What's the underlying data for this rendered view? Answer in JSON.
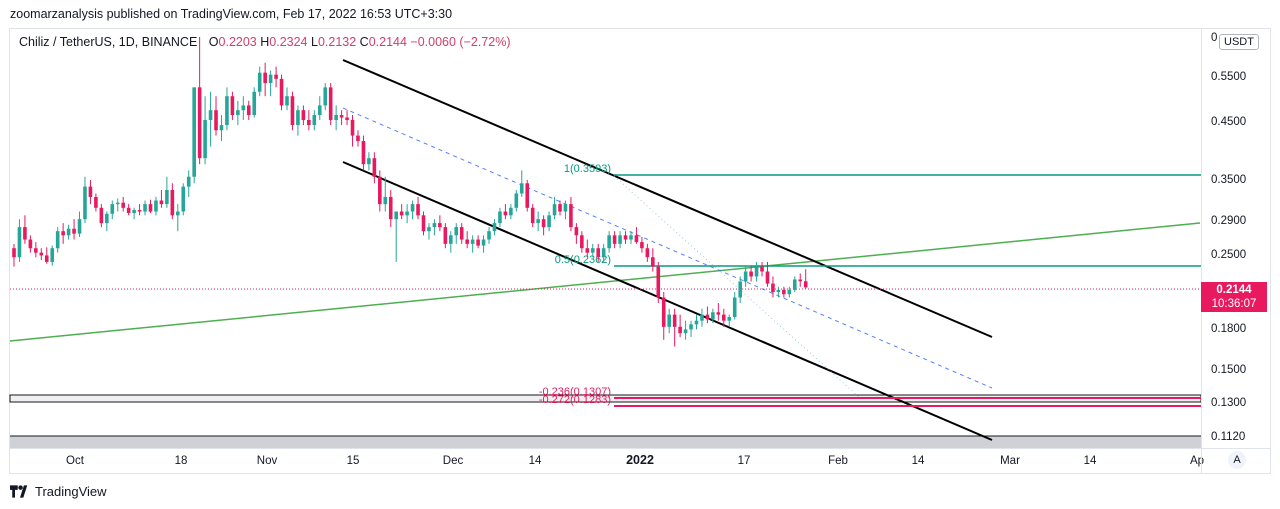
{
  "header": {
    "publisher_line": "zoomarzanalysis published on TradingView.com, Feb 17, 2022 16:53 UTC+3:30"
  },
  "legend": {
    "symbol": "Chiliz / TetherUS, 1D, BINANCE",
    "open_label": "O",
    "open": "0.2203",
    "high_label": "H",
    "high": "0.2324",
    "low_label": "L",
    "low": "0.2132",
    "close_label": "C",
    "close": "0.2144",
    "change": "−0.0060 (−2.72%)"
  },
  "price_axis": {
    "currency_button": "USDT",
    "top_label": "0",
    "last_price": "0.2144",
    "countdown": "10:36:07"
  },
  "footer": {
    "brand": "TradingView"
  },
  "time_axis": {
    "auto_button": "A"
  },
  "colors": {
    "up": "#26a69a",
    "down": "#e8195e",
    "fib": "#089981",
    "trend_green": "#4caf50",
    "channel": "#000000",
    "mid_dash": "#2962ff",
    "ext": "#e8195e"
  },
  "chart_data": {
    "type": "candlestick",
    "scale": "log",
    "y_ticks": [
      "0.5500",
      "0.4500",
      "0.3500",
      "0.2900",
      "0.2500",
      "0.1800",
      "0.1500",
      "0.1300",
      "0.1120"
    ],
    "x_ticks": [
      "Oct",
      "18",
      "Nov",
      "15",
      "Dec",
      "14",
      "2022",
      "17",
      "Feb",
      "14",
      "Mar",
      "14",
      "Ap"
    ],
    "last_price": 0.2144,
    "fib_levels": [
      {
        "label": "1(0.3593)",
        "value": 0.3593,
        "color": "#089981"
      },
      {
        "label": "0.5(0.2362)",
        "value": 0.2362,
        "color": "#089981"
      },
      {
        "label": "-0.236(0.1307)",
        "value": 0.1307,
        "color": "#e8195e"
      },
      {
        "label": "-0.272(0.1283)",
        "value": 0.1283,
        "color": "#e8195e"
      }
    ],
    "candles": [
      {
        "d": "Sep 25",
        "o": 0.255,
        "h": 0.26,
        "l": 0.235,
        "c": 0.245
      },
      {
        "d": "Sep 26",
        "o": 0.245,
        "h": 0.29,
        "l": 0.24,
        "c": 0.28
      },
      {
        "d": "Sep 27",
        "o": 0.28,
        "h": 0.295,
        "l": 0.26,
        "c": 0.265
      },
      {
        "d": "Sep 28",
        "o": 0.265,
        "h": 0.27,
        "l": 0.25,
        "c": 0.255
      },
      {
        "d": "Sep 29",
        "o": 0.255,
        "h": 0.262,
        "l": 0.245,
        "c": 0.25
      },
      {
        "d": "Sep 30",
        "o": 0.25,
        "h": 0.255,
        "l": 0.242,
        "c": 0.247
      },
      {
        "d": "Oct 1",
        "o": 0.247,
        "h": 0.256,
        "l": 0.238,
        "c": 0.24
      },
      {
        "d": "Oct 2",
        "o": 0.24,
        "h": 0.258,
        "l": 0.236,
        "c": 0.255
      },
      {
        "d": "Oct 3",
        "o": 0.255,
        "h": 0.28,
        "l": 0.25,
        "c": 0.275
      },
      {
        "d": "Oct 4",
        "o": 0.275,
        "h": 0.285,
        "l": 0.26,
        "c": 0.27
      },
      {
        "d": "Oct 5",
        "o": 0.27,
        "h": 0.283,
        "l": 0.265,
        "c": 0.278
      },
      {
        "d": "Oct 6",
        "o": 0.278,
        "h": 0.29,
        "l": 0.265,
        "c": 0.272
      },
      {
        "d": "Oct 7",
        "o": 0.272,
        "h": 0.3,
        "l": 0.268,
        "c": 0.29
      },
      {
        "d": "Oct 8",
        "o": 0.29,
        "h": 0.35,
        "l": 0.285,
        "c": 0.335
      },
      {
        "d": "Oct 9",
        "o": 0.335,
        "h": 0.345,
        "l": 0.31,
        "c": 0.32
      },
      {
        "d": "Oct 10",
        "o": 0.32,
        "h": 0.325,
        "l": 0.3,
        "c": 0.305
      },
      {
        "d": "Oct 11",
        "o": 0.305,
        "h": 0.31,
        "l": 0.28,
        "c": 0.285
      },
      {
        "d": "Oct 12",
        "o": 0.285,
        "h": 0.3,
        "l": 0.275,
        "c": 0.297
      },
      {
        "d": "Oct 13",
        "o": 0.297,
        "h": 0.315,
        "l": 0.29,
        "c": 0.31
      },
      {
        "d": "Oct 14",
        "o": 0.31,
        "h": 0.318,
        "l": 0.3,
        "c": 0.312
      },
      {
        "d": "Oct 15",
        "o": 0.312,
        "h": 0.32,
        "l": 0.3,
        "c": 0.305
      },
      {
        "d": "Oct 16",
        "o": 0.305,
        "h": 0.31,
        "l": 0.295,
        "c": 0.298
      },
      {
        "d": "Oct 17",
        "o": 0.298,
        "h": 0.305,
        "l": 0.29,
        "c": 0.302
      },
      {
        "d": "Oct 18",
        "o": 0.302,
        "h": 0.31,
        "l": 0.295,
        "c": 0.3
      },
      {
        "d": "Oct 19",
        "o": 0.3,
        "h": 0.315,
        "l": 0.295,
        "c": 0.31
      },
      {
        "d": "Oct 20",
        "o": 0.31,
        "h": 0.316,
        "l": 0.298,
        "c": 0.3
      },
      {
        "d": "Oct 21",
        "o": 0.3,
        "h": 0.32,
        "l": 0.295,
        "c": 0.315
      },
      {
        "d": "Oct 22",
        "o": 0.315,
        "h": 0.33,
        "l": 0.305,
        "c": 0.31
      },
      {
        "d": "Oct 23",
        "o": 0.31,
        "h": 0.35,
        "l": 0.305,
        "c": 0.33
      },
      {
        "d": "Oct 24",
        "o": 0.33,
        "h": 0.34,
        "l": 0.29,
        "c": 0.295
      },
      {
        "d": "Oct 25",
        "o": 0.295,
        "h": 0.31,
        "l": 0.275,
        "c": 0.3
      },
      {
        "d": "Oct 26",
        "o": 0.3,
        "h": 0.34,
        "l": 0.295,
        "c": 0.335
      },
      {
        "d": "Oct 27",
        "o": 0.335,
        "h": 0.36,
        "l": 0.32,
        "c": 0.35
      },
      {
        "d": "Oct 28",
        "o": 0.35,
        "h": 0.52,
        "l": 0.34,
        "c": 0.52
      },
      {
        "d": "Oct 29",
        "o": 0.52,
        "h": 0.65,
        "l": 0.37,
        "c": 0.38
      },
      {
        "d": "Oct 30",
        "o": 0.38,
        "h": 0.5,
        "l": 0.37,
        "c": 0.45
      },
      {
        "d": "Oct 31",
        "o": 0.45,
        "h": 0.51,
        "l": 0.4,
        "c": 0.47
      },
      {
        "d": "Nov 1",
        "o": 0.47,
        "h": 0.5,
        "l": 0.42,
        "c": 0.43
      },
      {
        "d": "Nov 2",
        "o": 0.43,
        "h": 0.46,
        "l": 0.41,
        "c": 0.44
      },
      {
        "d": "Nov 3",
        "o": 0.44,
        "h": 0.52,
        "l": 0.43,
        "c": 0.5
      },
      {
        "d": "Nov 4",
        "o": 0.5,
        "h": 0.51,
        "l": 0.45,
        "c": 0.46
      },
      {
        "d": "Nov 5",
        "o": 0.46,
        "h": 0.49,
        "l": 0.44,
        "c": 0.47
      },
      {
        "d": "Nov 6",
        "o": 0.47,
        "h": 0.5,
        "l": 0.45,
        "c": 0.48
      },
      {
        "d": "Nov 7",
        "o": 0.48,
        "h": 0.49,
        "l": 0.45,
        "c": 0.46
      },
      {
        "d": "Nov 8",
        "o": 0.46,
        "h": 0.52,
        "l": 0.455,
        "c": 0.51
      },
      {
        "d": "Nov 9",
        "o": 0.51,
        "h": 0.57,
        "l": 0.5,
        "c": 0.555
      },
      {
        "d": "Nov 10",
        "o": 0.555,
        "h": 0.58,
        "l": 0.5,
        "c": 0.53
      },
      {
        "d": "Nov 11",
        "o": 0.53,
        "h": 0.56,
        "l": 0.5,
        "c": 0.55
      },
      {
        "d": "Nov 12",
        "o": 0.55,
        "h": 0.57,
        "l": 0.52,
        "c": 0.54
      },
      {
        "d": "Nov 13",
        "o": 0.54,
        "h": 0.55,
        "l": 0.47,
        "c": 0.48
      },
      {
        "d": "Nov 14",
        "o": 0.48,
        "h": 0.52,
        "l": 0.47,
        "c": 0.5
      },
      {
        "d": "Nov 15",
        "o": 0.5,
        "h": 0.51,
        "l": 0.43,
        "c": 0.44
      },
      {
        "d": "Nov 16",
        "o": 0.44,
        "h": 0.48,
        "l": 0.42,
        "c": 0.47
      },
      {
        "d": "Nov 17",
        "o": 0.47,
        "h": 0.48,
        "l": 0.44,
        "c": 0.45
      },
      {
        "d": "Nov 18",
        "o": 0.45,
        "h": 0.47,
        "l": 0.43,
        "c": 0.44
      },
      {
        "d": "Nov 19",
        "o": 0.44,
        "h": 0.47,
        "l": 0.43,
        "c": 0.46
      },
      {
        "d": "Nov 20",
        "o": 0.46,
        "h": 0.5,
        "l": 0.45,
        "c": 0.48
      },
      {
        "d": "Nov 21",
        "o": 0.48,
        "h": 0.53,
        "l": 0.47,
        "c": 0.52
      },
      {
        "d": "Nov 22",
        "o": 0.52,
        "h": 0.53,
        "l": 0.44,
        "c": 0.45
      },
      {
        "d": "Nov 23",
        "o": 0.45,
        "h": 0.48,
        "l": 0.43,
        "c": 0.46
      },
      {
        "d": "Nov 24",
        "o": 0.46,
        "h": 0.47,
        "l": 0.44,
        "c": 0.455
      },
      {
        "d": "Nov 25",
        "o": 0.455,
        "h": 0.47,
        "l": 0.44,
        "c": 0.45
      },
      {
        "d": "Nov 26",
        "o": 0.45,
        "h": 0.46,
        "l": 0.4,
        "c": 0.42
      },
      {
        "d": "Nov 27",
        "o": 0.42,
        "h": 0.43,
        "l": 0.4,
        "c": 0.41
      },
      {
        "d": "Nov 28",
        "o": 0.41,
        "h": 0.42,
        "l": 0.36,
        "c": 0.37
      },
      {
        "d": "Nov 29",
        "o": 0.37,
        "h": 0.39,
        "l": 0.36,
        "c": 0.38
      },
      {
        "d": "Nov 30",
        "o": 0.38,
        "h": 0.39,
        "l": 0.34,
        "c": 0.35
      },
      {
        "d": "Dec 1",
        "o": 0.35,
        "h": 0.36,
        "l": 0.3,
        "c": 0.31
      },
      {
        "d": "Dec 2",
        "o": 0.31,
        "h": 0.35,
        "l": 0.3,
        "c": 0.32
      },
      {
        "d": "Dec 3",
        "o": 0.32,
        "h": 0.33,
        "l": 0.28,
        "c": 0.29
      },
      {
        "d": "Dec 4",
        "o": 0.29,
        "h": 0.3,
        "l": 0.24,
        "c": 0.3
      },
      {
        "d": "Dec 5",
        "o": 0.3,
        "h": 0.31,
        "l": 0.29,
        "c": 0.295
      },
      {
        "d": "Dec 6",
        "o": 0.295,
        "h": 0.31,
        "l": 0.285,
        "c": 0.3
      },
      {
        "d": "Dec 7",
        "o": 0.3,
        "h": 0.315,
        "l": 0.29,
        "c": 0.31
      },
      {
        "d": "Dec 8",
        "o": 0.31,
        "h": 0.32,
        "l": 0.29,
        "c": 0.295
      },
      {
        "d": "Dec 9",
        "o": 0.295,
        "h": 0.3,
        "l": 0.27,
        "c": 0.275
      },
      {
        "d": "Dec 10",
        "o": 0.275,
        "h": 0.285,
        "l": 0.265,
        "c": 0.28
      },
      {
        "d": "Dec 11",
        "o": 0.28,
        "h": 0.29,
        "l": 0.27,
        "c": 0.285
      },
      {
        "d": "Dec 12",
        "o": 0.285,
        "h": 0.295,
        "l": 0.275,
        "c": 0.28
      },
      {
        "d": "Dec 13",
        "o": 0.28,
        "h": 0.285,
        "l": 0.255,
        "c": 0.26
      },
      {
        "d": "Dec 14",
        "o": 0.26,
        "h": 0.275,
        "l": 0.25,
        "c": 0.27
      },
      {
        "d": "Dec 15",
        "o": 0.27,
        "h": 0.285,
        "l": 0.26,
        "c": 0.28
      },
      {
        "d": "Dec 16",
        "o": 0.28,
        "h": 0.285,
        "l": 0.26,
        "c": 0.265
      },
      {
        "d": "Dec 17",
        "o": 0.265,
        "h": 0.275,
        "l": 0.255,
        "c": 0.26
      },
      {
        "d": "Dec 18",
        "o": 0.26,
        "h": 0.27,
        "l": 0.25,
        "c": 0.265
      },
      {
        "d": "Dec 19",
        "o": 0.265,
        "h": 0.27,
        "l": 0.255,
        "c": 0.258
      },
      {
        "d": "Dec 20",
        "o": 0.258,
        "h": 0.27,
        "l": 0.25,
        "c": 0.265
      },
      {
        "d": "Dec 21",
        "o": 0.265,
        "h": 0.28,
        "l": 0.26,
        "c": 0.275
      },
      {
        "d": "Dec 22",
        "o": 0.275,
        "h": 0.29,
        "l": 0.27,
        "c": 0.285
      },
      {
        "d": "Dec 23",
        "o": 0.285,
        "h": 0.305,
        "l": 0.28,
        "c": 0.3
      },
      {
        "d": "Dec 24",
        "o": 0.3,
        "h": 0.31,
        "l": 0.29,
        "c": 0.295
      },
      {
        "d": "Dec 25",
        "o": 0.295,
        "h": 0.31,
        "l": 0.29,
        "c": 0.305
      },
      {
        "d": "Dec 26",
        "o": 0.305,
        "h": 0.33,
        "l": 0.3,
        "c": 0.325
      },
      {
        "d": "Dec 27",
        "o": 0.325,
        "h": 0.36,
        "l": 0.32,
        "c": 0.34
      },
      {
        "d": "Dec 28",
        "o": 0.34,
        "h": 0.345,
        "l": 0.3,
        "c": 0.305
      },
      {
        "d": "Dec 29",
        "o": 0.305,
        "h": 0.31,
        "l": 0.28,
        "c": 0.285
      },
      {
        "d": "Dec 30",
        "o": 0.285,
        "h": 0.3,
        "l": 0.275,
        "c": 0.29
      },
      {
        "d": "Dec 31",
        "o": 0.29,
        "h": 0.295,
        "l": 0.27,
        "c": 0.28
      },
      {
        "d": "Jan 1",
        "o": 0.28,
        "h": 0.3,
        "l": 0.275,
        "c": 0.295
      },
      {
        "d": "Jan 2",
        "o": 0.295,
        "h": 0.32,
        "l": 0.29,
        "c": 0.31
      },
      {
        "d": "Jan 3",
        "o": 0.31,
        "h": 0.315,
        "l": 0.295,
        "c": 0.3
      },
      {
        "d": "Jan 4",
        "o": 0.3,
        "h": 0.315,
        "l": 0.29,
        "c": 0.31
      },
      {
        "d": "Jan 5",
        "o": 0.31,
        "h": 0.32,
        "l": 0.275,
        "c": 0.28
      },
      {
        "d": "Jan 6",
        "o": 0.28,
        "h": 0.285,
        "l": 0.26,
        "c": 0.27
      },
      {
        "d": "Jan 7",
        "o": 0.27,
        "h": 0.275,
        "l": 0.25,
        "c": 0.255
      },
      {
        "d": "Jan 8",
        "o": 0.255,
        "h": 0.265,
        "l": 0.245,
        "c": 0.25
      },
      {
        "d": "Jan 9",
        "o": 0.25,
        "h": 0.26,
        "l": 0.245,
        "c": 0.255
      },
      {
        "d": "Jan 10",
        "o": 0.255,
        "h": 0.26,
        "l": 0.24,
        "c": 0.245
      },
      {
        "d": "Jan 11",
        "o": 0.245,
        "h": 0.26,
        "l": 0.24,
        "c": 0.255
      },
      {
        "d": "Jan 12",
        "o": 0.255,
        "h": 0.275,
        "l": 0.25,
        "c": 0.27
      },
      {
        "d": "Jan 13",
        "o": 0.27,
        "h": 0.275,
        "l": 0.255,
        "c": 0.26
      },
      {
        "d": "Jan 14",
        "o": 0.26,
        "h": 0.275,
        "l": 0.255,
        "c": 0.27
      },
      {
        "d": "Jan 15",
        "o": 0.27,
        "h": 0.275,
        "l": 0.26,
        "c": 0.265
      },
      {
        "d": "Jan 16",
        "o": 0.265,
        "h": 0.275,
        "l": 0.26,
        "c": 0.27
      },
      {
        "d": "Jan 17",
        "o": 0.27,
        "h": 0.28,
        "l": 0.26,
        "c": 0.262
      },
      {
        "d": "Jan 18",
        "o": 0.262,
        "h": 0.268,
        "l": 0.25,
        "c": 0.255
      },
      {
        "d": "Jan 19",
        "o": 0.255,
        "h": 0.26,
        "l": 0.24,
        "c": 0.245
      },
      {
        "d": "Jan 20",
        "o": 0.245,
        "h": 0.255,
        "l": 0.23,
        "c": 0.235
      },
      {
        "d": "Jan 21",
        "o": 0.235,
        "h": 0.24,
        "l": 0.2,
        "c": 0.205
      },
      {
        "d": "Jan 22",
        "o": 0.205,
        "h": 0.21,
        "l": 0.17,
        "c": 0.18
      },
      {
        "d": "Jan 23",
        "o": 0.18,
        "h": 0.195,
        "l": 0.175,
        "c": 0.19
      },
      {
        "d": "Jan 24",
        "o": 0.19,
        "h": 0.195,
        "l": 0.165,
        "c": 0.18
      },
      {
        "d": "Jan 25",
        "o": 0.18,
        "h": 0.19,
        "l": 0.172,
        "c": 0.175
      },
      {
        "d": "Jan 26",
        "o": 0.175,
        "h": 0.185,
        "l": 0.17,
        "c": 0.178
      },
      {
        "d": "Jan 27",
        "o": 0.178,
        "h": 0.185,
        "l": 0.172,
        "c": 0.182
      },
      {
        "d": "Jan 28",
        "o": 0.182,
        "h": 0.19,
        "l": 0.178,
        "c": 0.185
      },
      {
        "d": "Jan 29",
        "o": 0.185,
        "h": 0.195,
        "l": 0.18,
        "c": 0.19
      },
      {
        "d": "Jan 30",
        "o": 0.19,
        "h": 0.197,
        "l": 0.183,
        "c": 0.186
      },
      {
        "d": "Jan 31",
        "o": 0.186,
        "h": 0.195,
        "l": 0.183,
        "c": 0.192
      },
      {
        "d": "Feb 1",
        "o": 0.192,
        "h": 0.2,
        "l": 0.185,
        "c": 0.19
      },
      {
        "d": "Feb 2",
        "o": 0.19,
        "h": 0.195,
        "l": 0.18,
        "c": 0.185
      },
      {
        "d": "Feb 3",
        "o": 0.185,
        "h": 0.19,
        "l": 0.18,
        "c": 0.188
      },
      {
        "d": "Feb 4",
        "o": 0.188,
        "h": 0.21,
        "l": 0.186,
        "c": 0.205
      },
      {
        "d": "Feb 5",
        "o": 0.205,
        "h": 0.225,
        "l": 0.2,
        "c": 0.22
      },
      {
        "d": "Feb 6",
        "o": 0.22,
        "h": 0.235,
        "l": 0.215,
        "c": 0.23
      },
      {
        "d": "Feb 7",
        "o": 0.23,
        "h": 0.235,
        "l": 0.22,
        "c": 0.225
      },
      {
        "d": "Feb 8",
        "o": 0.225,
        "h": 0.24,
        "l": 0.22,
        "c": 0.235
      },
      {
        "d": "Feb 9",
        "o": 0.235,
        "h": 0.24,
        "l": 0.225,
        "c": 0.23
      },
      {
        "d": "Feb 10",
        "o": 0.23,
        "h": 0.24,
        "l": 0.215,
        "c": 0.218
      },
      {
        "d": "Feb 11",
        "o": 0.218,
        "h": 0.225,
        "l": 0.205,
        "c": 0.21
      },
      {
        "d": "Feb 12",
        "o": 0.21,
        "h": 0.215,
        "l": 0.205,
        "c": 0.212
      },
      {
        "d": "Feb 13",
        "o": 0.212,
        "h": 0.215,
        "l": 0.205,
        "c": 0.208
      },
      {
        "d": "Feb 14",
        "o": 0.208,
        "h": 0.215,
        "l": 0.205,
        "c": 0.212
      },
      {
        "d": "Feb 15",
        "o": 0.212,
        "h": 0.225,
        "l": 0.21,
        "c": 0.222
      },
      {
        "d": "Feb 16",
        "o": 0.222,
        "h": 0.228,
        "l": 0.215,
        "c": 0.2203
      },
      {
        "d": "Feb 17",
        "o": 0.2203,
        "h": 0.2324,
        "l": 0.2132,
        "c": 0.2144
      }
    ]
  }
}
